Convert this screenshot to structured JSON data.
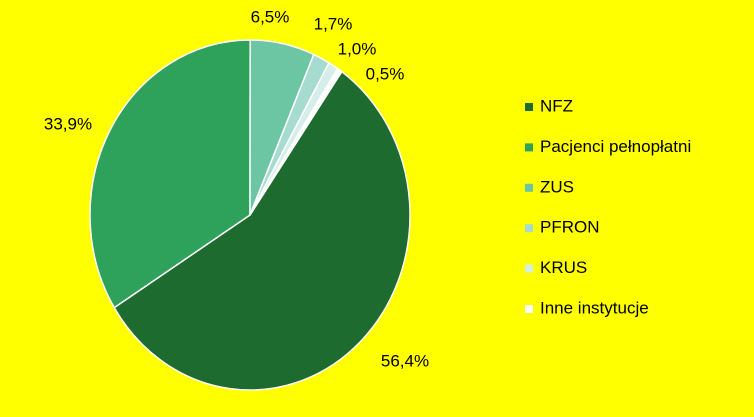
{
  "chart_data": {
    "type": "pie",
    "categories": [
      "NFZ",
      "Pacjenci pełnopłatni",
      "ZUS",
      "PFRON",
      "KRUS",
      "Inne instytucje"
    ],
    "values": [
      56.4,
      33.9,
      6.5,
      1.7,
      1.0,
      0.5
    ],
    "value_labels": [
      "56,4%",
      "33,9%",
      "6,5%",
      "1,7%",
      "1,0%",
      "0,5%"
    ],
    "colors": [
      "#1d6b2f",
      "#2ea25b",
      "#6cc6a4",
      "#a6dccf",
      "#d5eeea",
      "#ffffff"
    ],
    "legend": "right"
  }
}
